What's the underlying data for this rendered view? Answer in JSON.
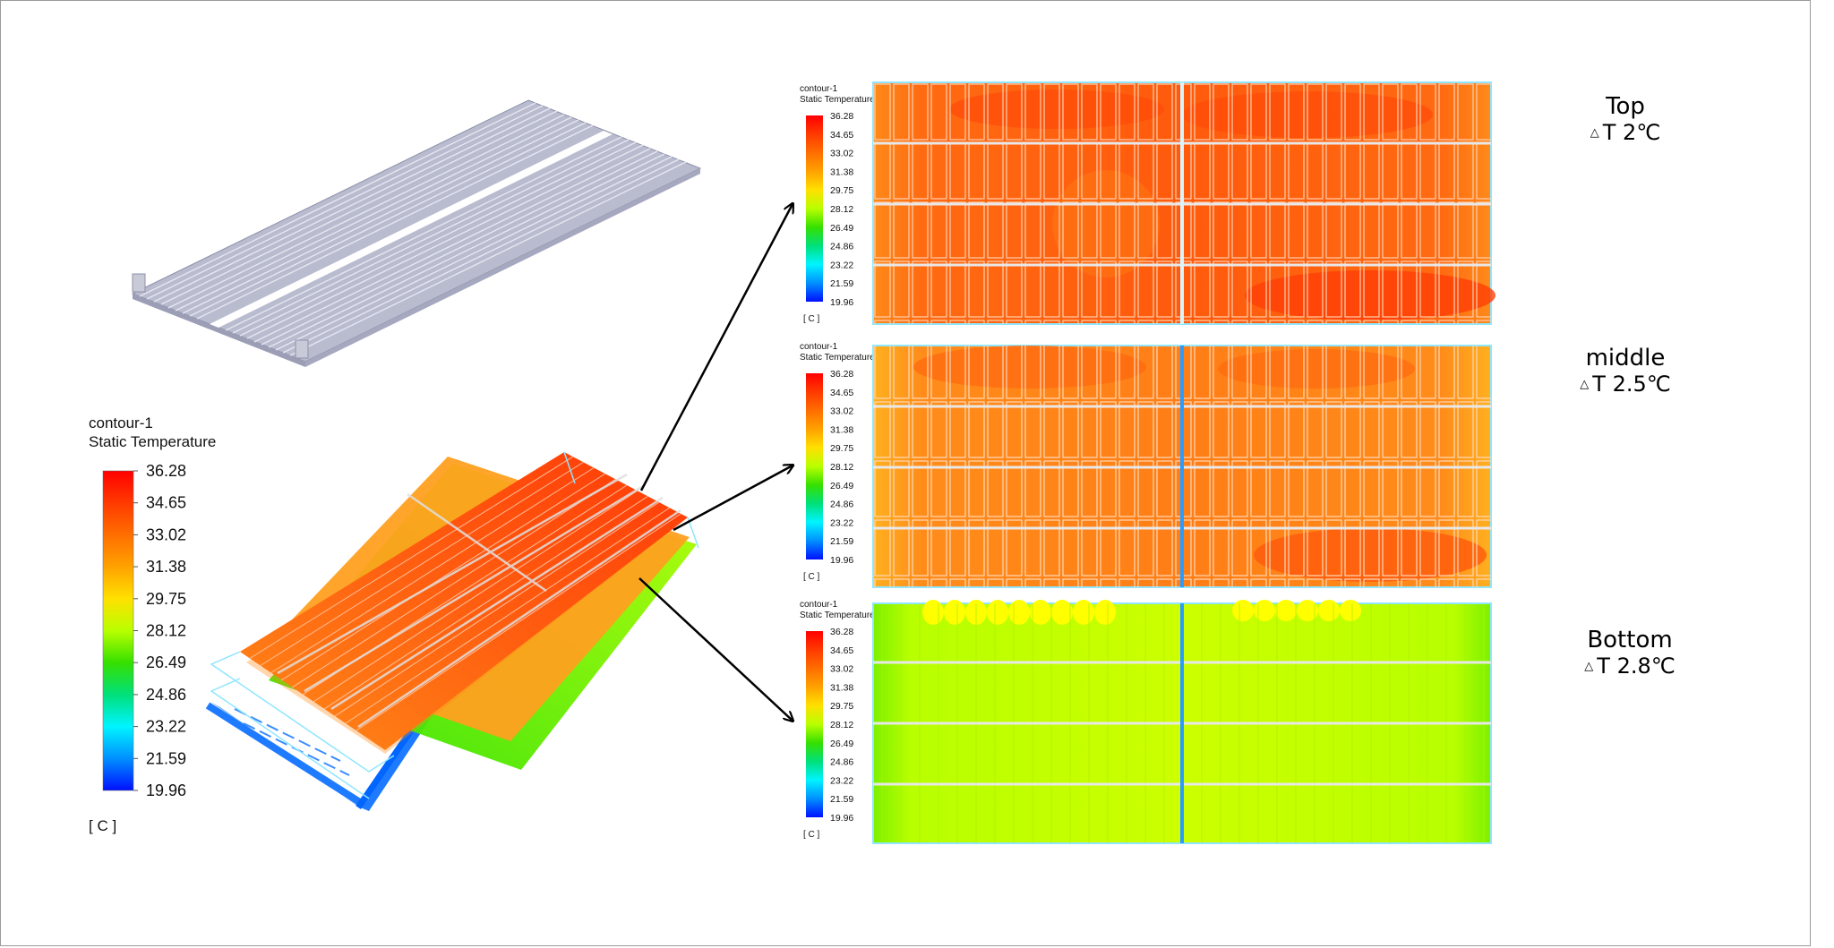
{
  "main_legend": {
    "title": "contour-1",
    "subtitle": "Static Temperature",
    "values": [
      "36.28",
      "34.65",
      "33.02",
      "31.38",
      "29.75",
      "28.12",
      "26.49",
      "24.86",
      "23.22",
      "21.59",
      "19.96"
    ],
    "unit": "[ C ]"
  },
  "panel_legends": [
    {
      "title": "contour-1",
      "subtitle": "Static Temperature",
      "values": [
        "36.28",
        "34.65",
        "33.02",
        "31.38",
        "29.75",
        "28.12",
        "26.49",
        "24.86",
        "23.22",
        "21.59",
        "19.96"
      ],
      "unit": "[ C ]"
    },
    {
      "title": "contour-1",
      "subtitle": "Static Temperature",
      "values": [
        "36.28",
        "34.65",
        "33.02",
        "31.38",
        "29.75",
        "28.12",
        "26.49",
        "24.86",
        "23.22",
        "21.59",
        "19.96"
      ],
      "unit": "[ C ]"
    },
    {
      "title": "contour-1",
      "subtitle": "Static Temperature",
      "values": [
        "36.28",
        "34.65",
        "33.02",
        "31.38",
        "29.75",
        "28.12",
        "26.49",
        "24.86",
        "23.22",
        "21.59",
        "19.96"
      ],
      "unit": "[ C ]"
    }
  ],
  "layers": [
    {
      "name": "Top",
      "delta_symbol": "△",
      "delta": "T 2℃"
    },
    {
      "name": "middle",
      "delta_symbol": "△",
      "delta": "T 2.5℃"
    },
    {
      "name": "Bottom",
      "delta_symbol": "△",
      "delta": "T 2.8℃"
    }
  ],
  "colors": {
    "scale": [
      "#ff0000",
      "#ff3300",
      "#ff6600",
      "#ff9900",
      "#ffcc00",
      "#ffff00",
      "#ccff00",
      "#66ee00",
      "#00dd33",
      "#00ffcc",
      "#00ccff",
      "#0088ff",
      "#0022ff"
    ],
    "top_panel": "#ff6a12",
    "middle_panel": "#ff8c1a",
    "bottom_panel": "#c6ff00",
    "cold_plate": "#b9bbcf",
    "frame_line": "#8fe6ff"
  }
}
